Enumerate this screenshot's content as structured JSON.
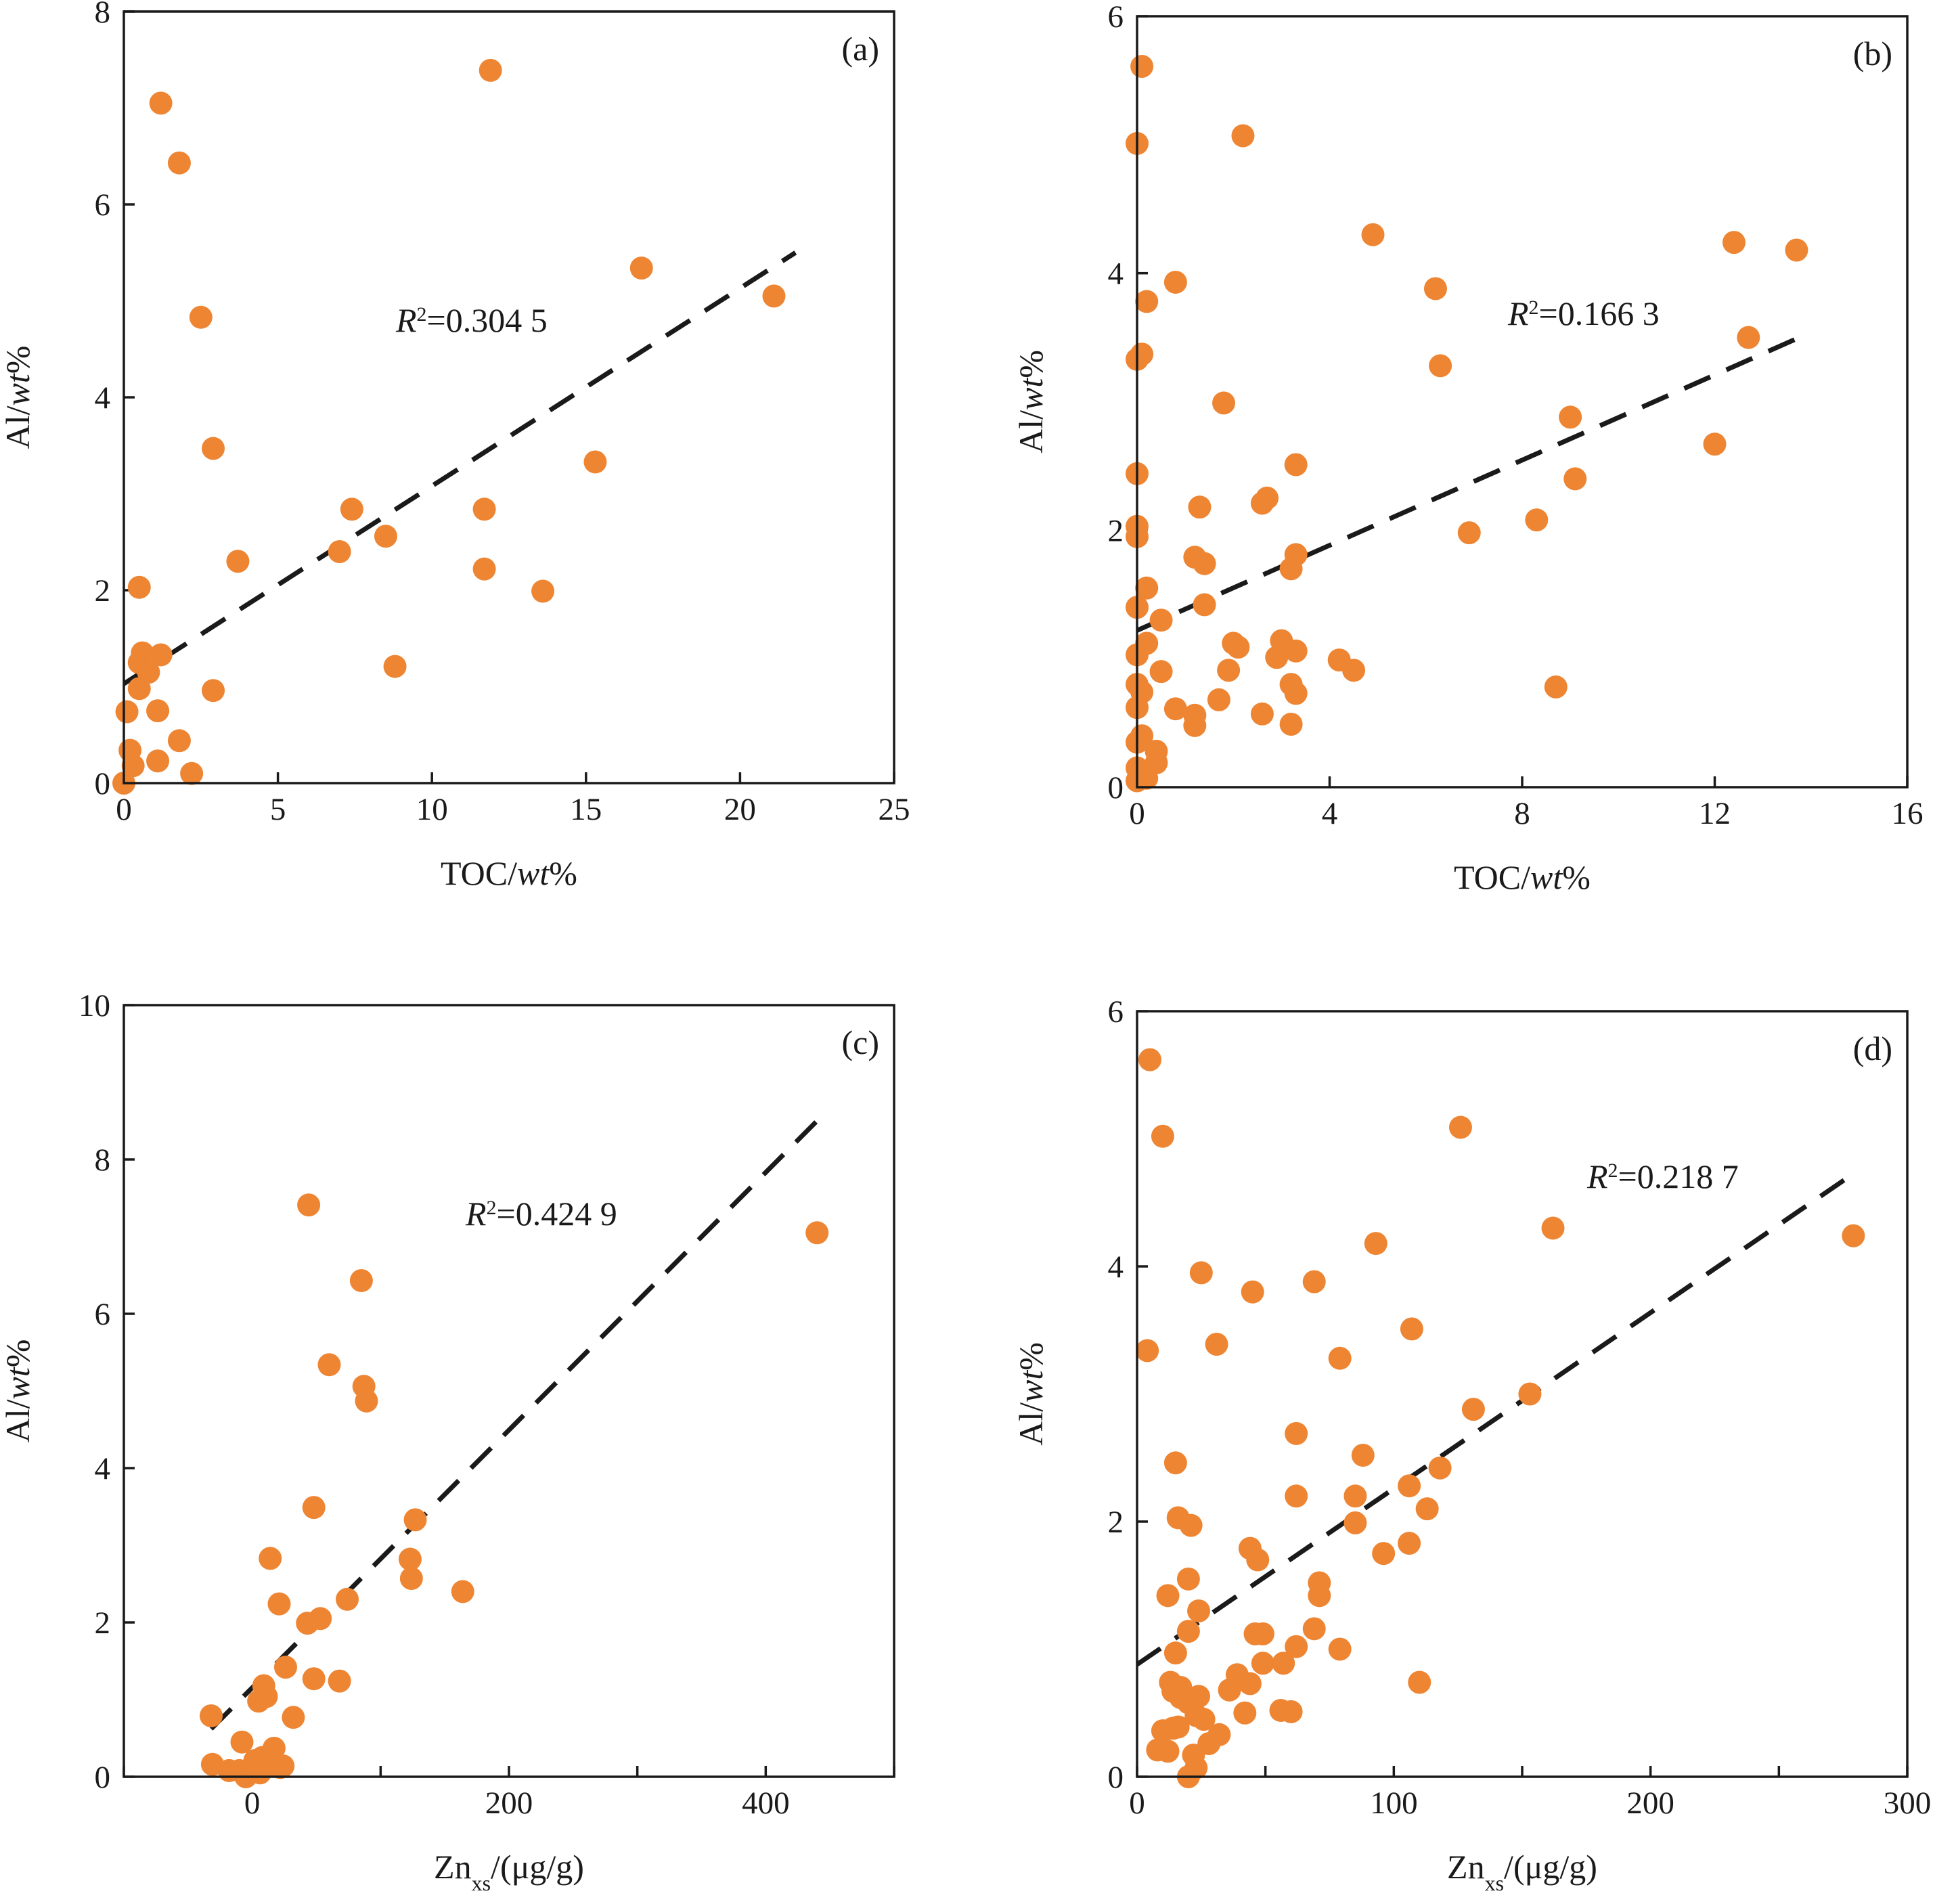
{
  "colors": {
    "point": "#EE8533",
    "trend": "#1a1a1a",
    "axis": "#1a1a1a"
  },
  "chart_data": [
    {
      "type": "scatter",
      "panel_label": "(a)",
      "xlabel_main": "TOC/",
      "xlabel_italic": "wt",
      "xlabel_tail": "%",
      "ylabel_main": "Al/",
      "ylabel_italic": "wt",
      "ylabel_tail": "%",
      "r2_prefix": "R",
      "r2_sup": "2",
      "r2_value": "=0.304 5",
      "xlim": [
        0,
        25
      ],
      "ylim": [
        0,
        8
      ],
      "xticks": [
        0,
        5,
        10,
        15,
        20,
        25
      ],
      "xtick_labels": [
        "0",
        "5",
        "10",
        "15",
        "20",
        "25"
      ],
      "yticks": [
        0,
        2,
        4,
        6,
        8
      ],
      "ytick_labels": [
        "0",
        "2",
        "4",
        "6",
        "8"
      ],
      "trend": [
        [
          0,
          1.03
        ],
        [
          21.8,
          5.5
        ]
      ],
      "x": [
        1.2,
        1.8,
        11.9,
        2.5,
        16.8,
        21.1,
        2.9,
        15.3,
        7.4,
        11.7,
        8.5,
        7.0,
        3.7,
        11.7,
        13.6,
        0.5,
        8.8,
        0.6,
        1.2,
        0.5,
        0.8,
        0.5,
        2.9,
        0.1,
        1.1,
        1.8,
        0.2,
        1.1,
        0.3,
        2.2,
        0.0
      ],
      "y": [
        7.05,
        6.43,
        7.39,
        4.83,
        5.34,
        5.05,
        3.47,
        3.33,
        2.84,
        2.84,
        2.56,
        2.4,
        2.3,
        2.22,
        1.99,
        2.03,
        1.21,
        1.35,
        1.33,
        1.25,
        1.15,
        0.98,
        0.96,
        0.74,
        0.75,
        0.44,
        0.34,
        0.23,
        0.18,
        0.1,
        0.0
      ]
    },
    {
      "type": "scatter",
      "panel_label": "(b)",
      "xlabel_main": "TOC/",
      "xlabel_italic": "wt",
      "xlabel_tail": "%",
      "ylabel_main": "Al/",
      "ylabel_italic": "wt",
      "ylabel_tail": "%",
      "r2_prefix": "R",
      "r2_sup": "2",
      "r2_value": "=0.166 3",
      "xlim": [
        0,
        16
      ],
      "ylim": [
        0,
        6
      ],
      "xticks": [
        0,
        4,
        8,
        12,
        16
      ],
      "xtick_labels": [
        "0",
        "4",
        "8",
        "12",
        "16"
      ],
      "yticks": [
        0,
        2,
        4,
        6
      ],
      "ytick_labels": [
        "0",
        "2",
        "4",
        "6"
      ],
      "trend": [
        [
          0,
          1.22
        ],
        [
          13.7,
          3.49
        ]
      ],
      "x": [
        0.1,
        0.0,
        2.2,
        4.9,
        12.4,
        13.7,
        0.8,
        0.2,
        6.2,
        0.1,
        0.0,
        6.3,
        12.7,
        1.8,
        9.0,
        12.0,
        0.0,
        3.3,
        9.1,
        1.3,
        2.7,
        2.6,
        0.0,
        0.0,
        3.3,
        1.2,
        1.4,
        3.2,
        6.9,
        8.3,
        0.2,
        1.4,
        0.0,
        0.5,
        0.2,
        2.0,
        2.1,
        3.0,
        3.3,
        2.9,
        4.2,
        0.0,
        0.5,
        1.9,
        4.5,
        0.0,
        3.2,
        8.7,
        0.1,
        3.3,
        1.7,
        0.0,
        0.8,
        2.6,
        1.2,
        1.2,
        3.2,
        0.1,
        0.0,
        0.4,
        0.4,
        0.0,
        0.1,
        0.2,
        0.0
      ],
      "y": [
        5.61,
        5.01,
        5.07,
        4.3,
        4.24,
        4.18,
        3.93,
        3.78,
        3.88,
        3.37,
        3.33,
        3.28,
        3.5,
        2.99,
        2.88,
        2.67,
        2.44,
        2.51,
        2.4,
        2.18,
        2.25,
        2.21,
        2.03,
        1.95,
        1.81,
        1.79,
        1.74,
        1.7,
        1.98,
        2.08,
        1.55,
        1.42,
        1.4,
        1.3,
        1.12,
        1.12,
        1.09,
        1.14,
        1.06,
        1.01,
        0.99,
        1.03,
        0.9,
        0.91,
        0.91,
        0.8,
        0.8,
        0.78,
        0.74,
        0.73,
        0.68,
        0.62,
        0.61,
        0.57,
        0.56,
        0.48,
        0.49,
        0.4,
        0.35,
        0.28,
        0.19,
        0.15,
        0.09,
        0.07,
        0.05
      ]
    },
    {
      "type": "scatter",
      "panel_label": "(c)",
      "xlabel_main": "Zn",
      "xlabel_sub": "xs",
      "xlabel_tail": "/(μg/g)",
      "ylabel_main": "Al/",
      "ylabel_italic": "wt",
      "ylabel_tail": "%",
      "r2_prefix": "R",
      "r2_sup": "2",
      "r2_value": "=0.424 9",
      "xlim": [
        -100,
        500
      ],
      "ylim": [
        0,
        10
      ],
      "xticks": [
        -100,
        0,
        100,
        200,
        300,
        400,
        500
      ],
      "xtick_labels": [
        "",
        "0",
        "",
        "200",
        "",
        "400",
        ""
      ],
      "yticks": [
        0,
        2,
        4,
        6,
        8,
        10
      ],
      "ytick_labels": [
        "0",
        "2",
        "4",
        "6",
        "8",
        "10"
      ],
      "trend": [
        [
          -32,
          0.62
        ],
        [
          440,
          8.5
        ]
      ],
      "x": [
        44,
        85,
        440,
        60,
        87,
        89,
        48,
        127,
        14,
        123,
        124,
        164,
        21,
        74,
        53,
        43,
        26,
        48,
        68,
        9,
        5,
        11,
        32,
        -32,
        -8,
        17,
        8,
        12,
        -31,
        24,
        22,
        2,
        6,
        -10,
        -5,
        -18
      ],
      "y": [
        7.41,
        6.43,
        7.05,
        5.34,
        5.06,
        4.87,
        3.49,
        3.33,
        2.83,
        2.82,
        2.57,
        2.4,
        2.24,
        2.3,
        2.05,
        1.99,
        1.42,
        1.27,
        1.24,
        1.18,
        0.98,
        1.04,
        0.77,
        0.79,
        0.45,
        0.37,
        0.25,
        0.14,
        0.16,
        0.14,
        0.12,
        0.21,
        0.05,
        0.08,
        0.0,
        0.08
      ]
    },
    {
      "type": "scatter",
      "panel_label": "(d)",
      "xlabel_main": "Zn",
      "xlabel_sub": "xs",
      "xlabel_tail": "/(μg/g)",
      "ylabel_main": "Al/",
      "ylabel_italic": "wt",
      "ylabel_tail": "%",
      "r2_prefix": "R",
      "r2_sup": "2",
      "r2_value": "=0.218 7",
      "xlim": [
        0,
        300
      ],
      "ylim": [
        0,
        6
      ],
      "xticks": [
        0,
        50,
        100,
        150,
        200,
        250,
        300
      ],
      "xtick_labels": [
        "0",
        "",
        "100",
        "",
        "200",
        "",
        "300"
      ],
      "yticks": [
        0,
        2,
        4,
        6
      ],
      "ytick_labels": [
        "0",
        "2",
        "4",
        "6"
      ],
      "trend": [
        [
          0,
          0.88
        ],
        [
          280,
          4.74
        ]
      ],
      "x": [
        5,
        10,
        126,
        162,
        279,
        93,
        25,
        45,
        69,
        107,
        4,
        31,
        79,
        131,
        153,
        62,
        88,
        15,
        118,
        106,
        62,
        85,
        113,
        85,
        106,
        96,
        44,
        47,
        71,
        71,
        12,
        16,
        21,
        24,
        20,
        20,
        46,
        49,
        69,
        62,
        79,
        15,
        13,
        44,
        49,
        57,
        110,
        20,
        17,
        39,
        36,
        17,
        14,
        42,
        56,
        23,
        26,
        16,
        60,
        14,
        10,
        12,
        32,
        28,
        23,
        8,
        22,
        20,
        24
      ],
      "y": [
        5.62,
        5.02,
        5.09,
        4.3,
        4.24,
        4.18,
        3.95,
        3.8,
        3.88,
        3.51,
        3.34,
        3.39,
        3.28,
        2.88,
        3.0,
        2.69,
        2.52,
        2.46,
        2.42,
        2.28,
        2.2,
        2.2,
        2.1,
        1.99,
        1.83,
        1.75,
        1.79,
        1.7,
        1.52,
        1.42,
        1.42,
        2.03,
        1.97,
        1.3,
        1.55,
        1.14,
        1.12,
        1.12,
        1.16,
        1.02,
        1.0,
        0.97,
        0.74,
        0.73,
        0.89,
        0.89,
        0.74,
        0.58,
        0.62,
        0.8,
        0.68,
        0.7,
        0.67,
        0.5,
        0.52,
        0.48,
        0.45,
        0.39,
        0.51,
        0.38,
        0.36,
        0.2,
        0.33,
        0.26,
        0.07,
        0.21,
        0.17,
        0.0,
        0.63
      ]
    }
  ]
}
